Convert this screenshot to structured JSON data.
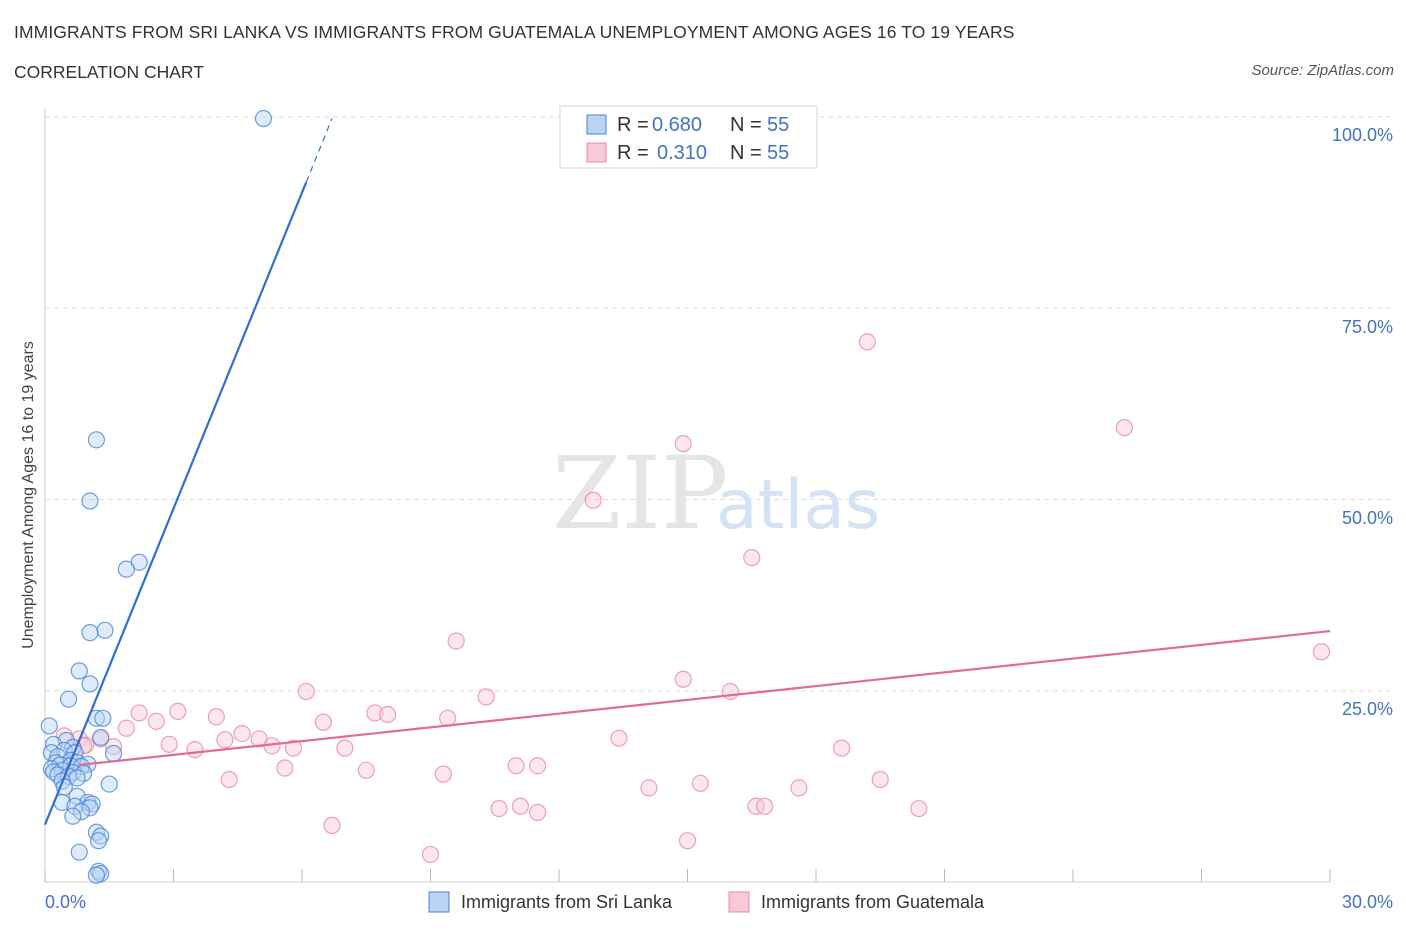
{
  "header": {
    "title": "IMMIGRANTS FROM SRI LANKA VS IMMIGRANTS FROM GUATEMALA UNEMPLOYMENT AMONG AGES 16 TO 19 YEARS",
    "subtitle": "CORRELATION CHART",
    "source": "Source: ZipAtlas.com"
  },
  "watermark": {
    "zip": "ZIP",
    "atlas": "atlas"
  },
  "legend": {
    "items": [
      {
        "r_label": "R =",
        "r_value": "0.680",
        "n_label": "N =",
        "n_value": "55"
      },
      {
        "r_label": "R =",
        "r_value": "0.310",
        "n_label": "N =",
        "n_value": "55"
      }
    ]
  },
  "colors": {
    "blue_fill": "#b9d3f5",
    "blue_stroke": "#4a86d8",
    "blue_line": "#2e6fd0",
    "pink_fill": "#f9c9d8",
    "pink_stroke": "#e98aa8",
    "pink_line": "#e06b95",
    "accent_text": "#4472c4",
    "grid": "#dddddd"
  },
  "chart_data": {
    "type": "scatter",
    "title": "IMMIGRANTS FROM SRI LANKA VS IMMIGRANTS FROM GUATEMALA UNEMPLOYMENT AMONG AGES 16 TO 19 YEARS",
    "xlabel": "",
    "ylabel": "Unemployment Among Ages 16 to 19 years",
    "xlim": [
      0,
      30
    ],
    "ylim": [
      0,
      100
    ],
    "x_tick_labels": [
      "0.0%",
      "30.0%"
    ],
    "y_ticks": [
      25,
      50,
      75,
      100
    ],
    "y_tick_labels": [
      "25.0%",
      "50.0%",
      "75.0%",
      "100.0%"
    ],
    "grid": true,
    "legend_position": "top-center",
    "series": [
      {
        "name": "Immigrants from Sri Lanka",
        "r": 0.68,
        "n": 55,
        "trend": {
          "x0": 0,
          "y0": 7.5,
          "x1": 6.1,
          "y1": 91.5,
          "dash_x1": 6.7,
          "dash_y1": 99.8
        },
        "points": [
          [
            5.1,
            99.8
          ],
          [
            1.2,
            57.8
          ],
          [
            1.05,
            49.8
          ],
          [
            2.2,
            41.8
          ],
          [
            1.9,
            40.9
          ],
          [
            1.4,
            32.9
          ],
          [
            1.05,
            32.6
          ],
          [
            0.8,
            27.6
          ],
          [
            1.05,
            25.9
          ],
          [
            0.55,
            23.9
          ],
          [
            1.2,
            21.4
          ],
          [
            1.35,
            21.4
          ],
          [
            0.1,
            20.4
          ],
          [
            1.3,
            18.9
          ],
          [
            0.5,
            18.5
          ],
          [
            0.2,
            18.0
          ],
          [
            0.65,
            17.6
          ],
          [
            0.45,
            17.2
          ],
          [
            0.7,
            16.9
          ],
          [
            0.15,
            16.9
          ],
          [
            1.6,
            16.8
          ],
          [
            0.3,
            16.4
          ],
          [
            0.6,
            15.9
          ],
          [
            0.25,
            15.6
          ],
          [
            0.75,
            15.6
          ],
          [
            1.0,
            15.4
          ],
          [
            0.35,
            15.3
          ],
          [
            0.6,
            15.2
          ],
          [
            0.85,
            15.1
          ],
          [
            0.15,
            14.8
          ],
          [
            0.4,
            14.6
          ],
          [
            0.2,
            14.4
          ],
          [
            0.65,
            14.3
          ],
          [
            0.9,
            14.2
          ],
          [
            0.3,
            14.0
          ],
          [
            0.55,
            13.8
          ],
          [
            0.75,
            13.6
          ],
          [
            0.4,
            13.2
          ],
          [
            1.5,
            12.8
          ],
          [
            0.45,
            12.4
          ],
          [
            0.75,
            11.2
          ],
          [
            1.0,
            10.4
          ],
          [
            0.4,
            10.4
          ],
          [
            1.1,
            10.2
          ],
          [
            0.7,
            9.9
          ],
          [
            1.05,
            9.7
          ],
          [
            0.85,
            9.2
          ],
          [
            0.65,
            8.6
          ],
          [
            1.2,
            6.5
          ],
          [
            1.3,
            6.0
          ],
          [
            1.25,
            5.4
          ],
          [
            0.8,
            3.9
          ],
          [
            1.25,
            1.4
          ],
          [
            1.3,
            1.1
          ],
          [
            1.2,
            0.9
          ]
        ]
      },
      {
        "name": "Immigrants from Guatemala",
        "r": 0.31,
        "n": 55,
        "trend": {
          "x0": 0.8,
          "y0": 15.3,
          "x1": 30,
          "y1": 32.8
        },
        "points": [
          [
            19.2,
            70.6
          ],
          [
            25.2,
            59.4
          ],
          [
            14.9,
            57.3
          ],
          [
            12.8,
            49.9
          ],
          [
            16.5,
            42.4
          ],
          [
            9.6,
            31.5
          ],
          [
            29.8,
            30.1
          ],
          [
            14.9,
            26.5
          ],
          [
            6.1,
            24.9
          ],
          [
            10.3,
            24.2
          ],
          [
            16.0,
            24.9
          ],
          [
            3.1,
            22.3
          ],
          [
            2.2,
            22.1
          ],
          [
            7.7,
            22.1
          ],
          [
            8.0,
            21.9
          ],
          [
            4.0,
            21.6
          ],
          [
            9.4,
            21.4
          ],
          [
            2.6,
            21.0
          ],
          [
            6.5,
            20.9
          ],
          [
            1.9,
            20.1
          ],
          [
            4.6,
            19.4
          ],
          [
            0.45,
            19.1
          ],
          [
            0.8,
            18.7
          ],
          [
            4.2,
            18.6
          ],
          [
            13.4,
            18.8
          ],
          [
            5.0,
            18.7
          ],
          [
            1.3,
            18.7
          ],
          [
            2.9,
            18.0
          ],
          [
            0.95,
            17.9
          ],
          [
            5.3,
            17.8
          ],
          [
            1.6,
            17.7
          ],
          [
            3.5,
            17.3
          ],
          [
            7.0,
            17.5
          ],
          [
            18.6,
            17.5
          ],
          [
            5.8,
            17.5
          ],
          [
            11.0,
            15.2
          ],
          [
            11.5,
            15.2
          ],
          [
            5.6,
            14.9
          ],
          [
            7.5,
            14.6
          ],
          [
            9.3,
            14.1
          ],
          [
            4.3,
            13.4
          ],
          [
            19.5,
            13.4
          ],
          [
            15.3,
            12.9
          ],
          [
            14.1,
            12.3
          ],
          [
            17.6,
            12.3
          ],
          [
            16.6,
            9.9
          ],
          [
            16.8,
            9.9
          ],
          [
            20.4,
            9.6
          ],
          [
            10.6,
            9.6
          ],
          [
            11.1,
            9.9
          ],
          [
            11.5,
            9.1
          ],
          [
            6.7,
            7.4
          ],
          [
            15.0,
            5.4
          ],
          [
            9.0,
            3.6
          ],
          [
            0.9,
            17.8
          ]
        ]
      }
    ]
  }
}
